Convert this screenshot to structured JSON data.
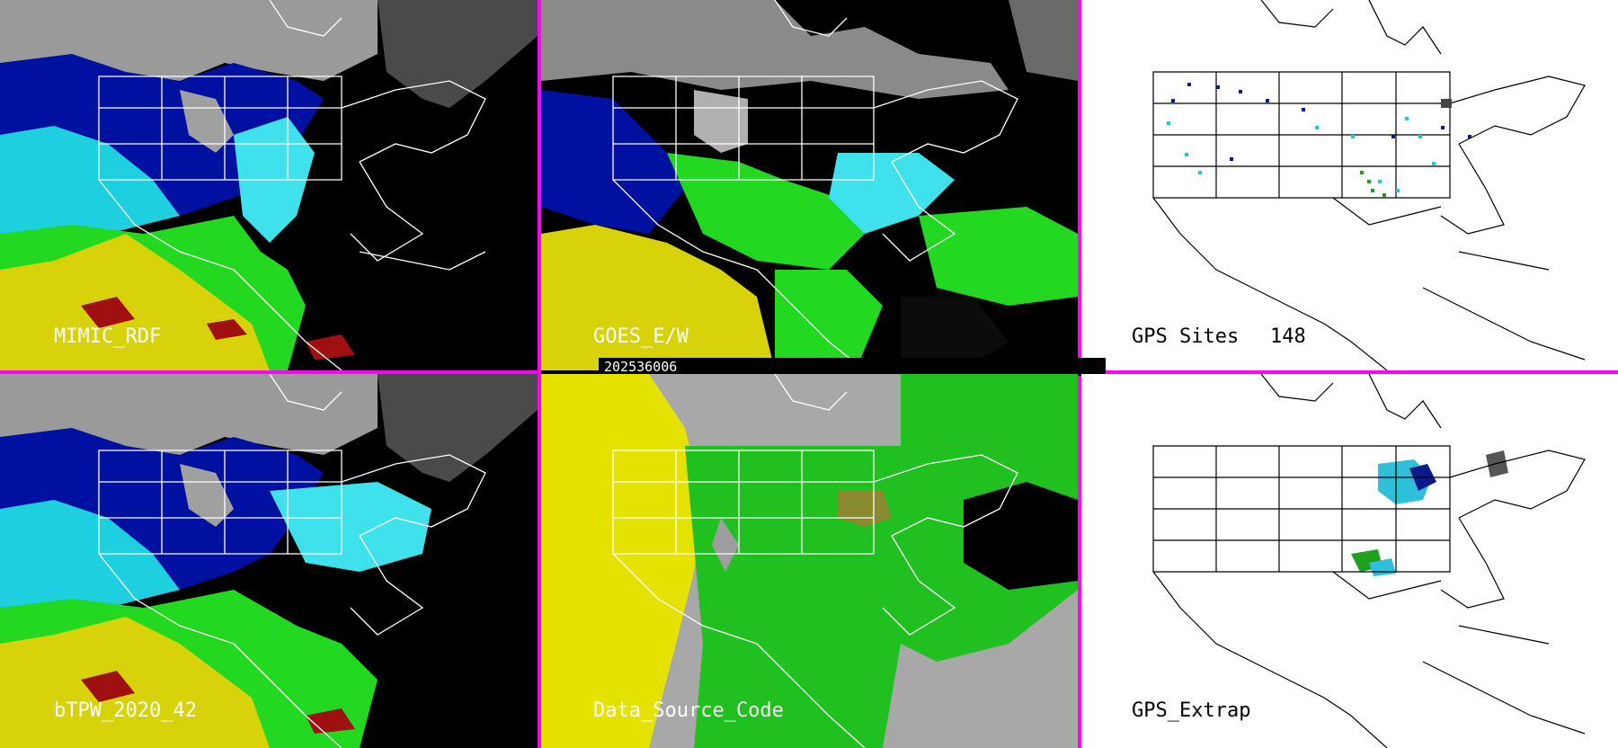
{
  "colors": {
    "divider": "#ff00ff",
    "map_lines_dark": "#ffffff",
    "map_lines_light": "#000000",
    "label_on_dark": "#ffffff",
    "label_on_light": "#000000"
  },
  "panels": [
    {
      "id": "mimic",
      "label": "MIMIC_RDF",
      "theme": "tpw_dark"
    },
    {
      "id": "goes",
      "label": "GOES_E/W",
      "theme": "goes_dark"
    },
    {
      "id": "gps_sites",
      "label": "GPS Sites",
      "count": "148",
      "theme": "white"
    },
    {
      "id": "btpw",
      "label": "bTPW_2020_42",
      "theme": "tpw_dark"
    },
    {
      "id": "source",
      "label": "Data_Source_Code",
      "theme": "source"
    },
    {
      "id": "gps_extrap",
      "label": "GPS_Extrap",
      "theme": "white"
    }
  ],
  "timestamp": "202536006"
}
